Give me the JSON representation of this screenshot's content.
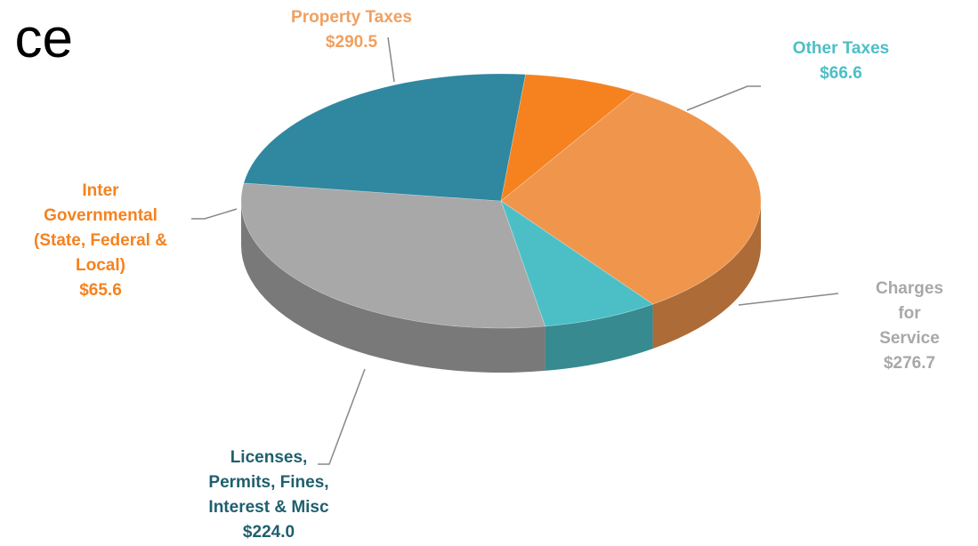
{
  "chart_data": {
    "type": "pie",
    "title": "ce",
    "categories": [
      "Property Taxes",
      "Other Taxes",
      "Charges for\nService",
      "Licenses,\nPermits, Fines,\nInterest & Misc",
      "Inter\nGovernmental\n(State, Federal &\nLocal)"
    ],
    "values": [
      290.5,
      66.6,
      276.7,
      224.0,
      65.6
    ],
    "value_labels": [
      "$290.5",
      "$66.6",
      "$276.7",
      "$224.0",
      "$65.6"
    ],
    "colors": [
      "#f0954c",
      "#4cbfc6",
      "#a8a8a8",
      "#2f87a0",
      "#f5821f"
    ],
    "label_colors": [
      "#f0a060",
      "#4cbfc6",
      "#a8a8a8",
      "#1f5f6e",
      "#f5821f"
    ]
  }
}
